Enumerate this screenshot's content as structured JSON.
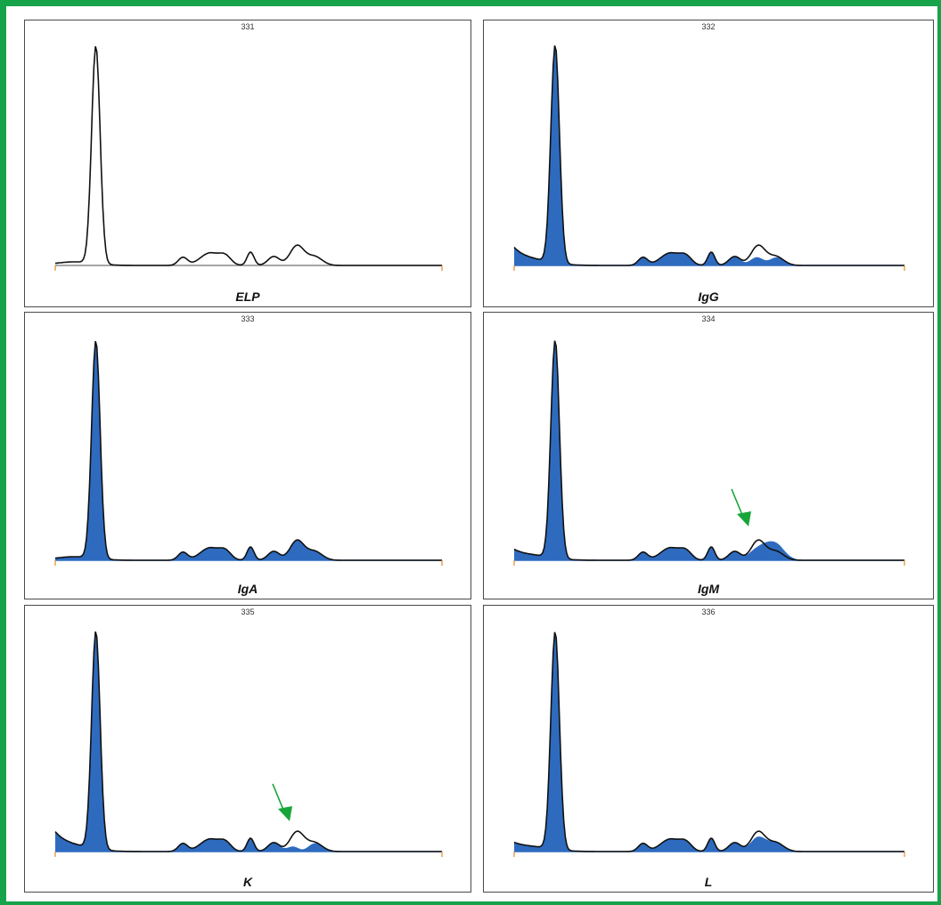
{
  "colors": {
    "frame": "#16a34a",
    "fill": "#2e6bbf",
    "outline": "#111111",
    "arrow": "#17a539",
    "tick": "#e08a2a"
  },
  "chart_data": [
    {
      "type": "area",
      "number": "331",
      "label": "ELP",
      "filled": false,
      "arrow": false
    },
    {
      "type": "area",
      "number": "332",
      "label": "IgG",
      "filled": true,
      "arrow": false
    },
    {
      "type": "area",
      "number": "333",
      "label": "IgA",
      "filled": true,
      "arrow": false
    },
    {
      "type": "area",
      "number": "334",
      "label": "IgM",
      "filled": true,
      "arrow": true
    },
    {
      "type": "area",
      "number": "335",
      "label": "K",
      "filled": true,
      "arrow": true
    },
    {
      "type": "area",
      "number": "336",
      "label": "L",
      "filled": true,
      "arrow": false
    }
  ]
}
